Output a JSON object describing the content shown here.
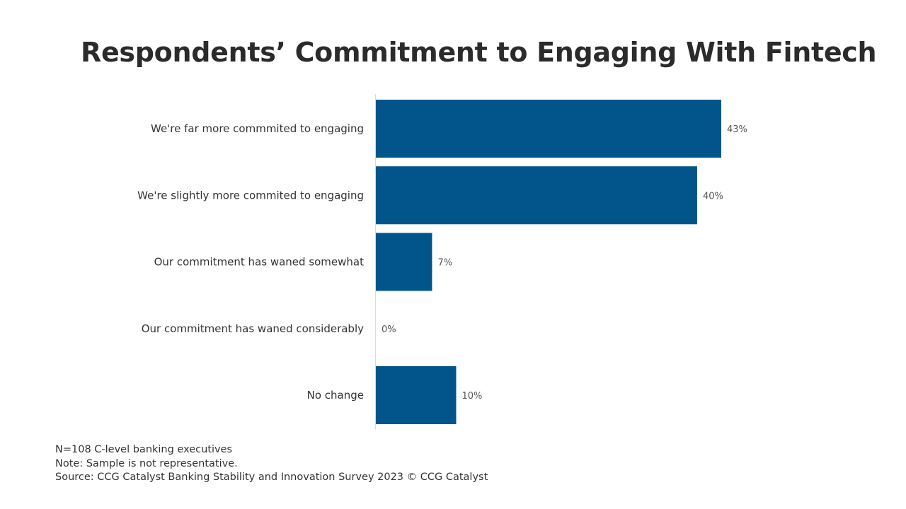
{
  "chart_data": {
    "type": "bar",
    "orientation": "horizontal",
    "title": "Respondents’ Commitment to Engaging With Fintech",
    "categories": [
      "We're far more commmited to engaging",
      "We're slightly more commited to engaging",
      "Our commitment has waned somewhat",
      "Our commitment has waned considerably",
      "No change"
    ],
    "values": [
      43,
      40,
      7,
      0,
      10
    ],
    "value_labels": [
      "43%",
      "40%",
      "7%",
      "0%",
      "10%"
    ],
    "unit": "%",
    "xlim": [
      0,
      60
    ],
    "bar_color": "#02558a",
    "grid": false,
    "legend": "none"
  },
  "footnotes": {
    "sample": "N=108 C-level banking executives",
    "note": "Note: Sample is not representative.",
    "source": "Source: CCG Catalyst Banking Stability and Innovation Survey 2023 © CCG Catalyst"
  }
}
